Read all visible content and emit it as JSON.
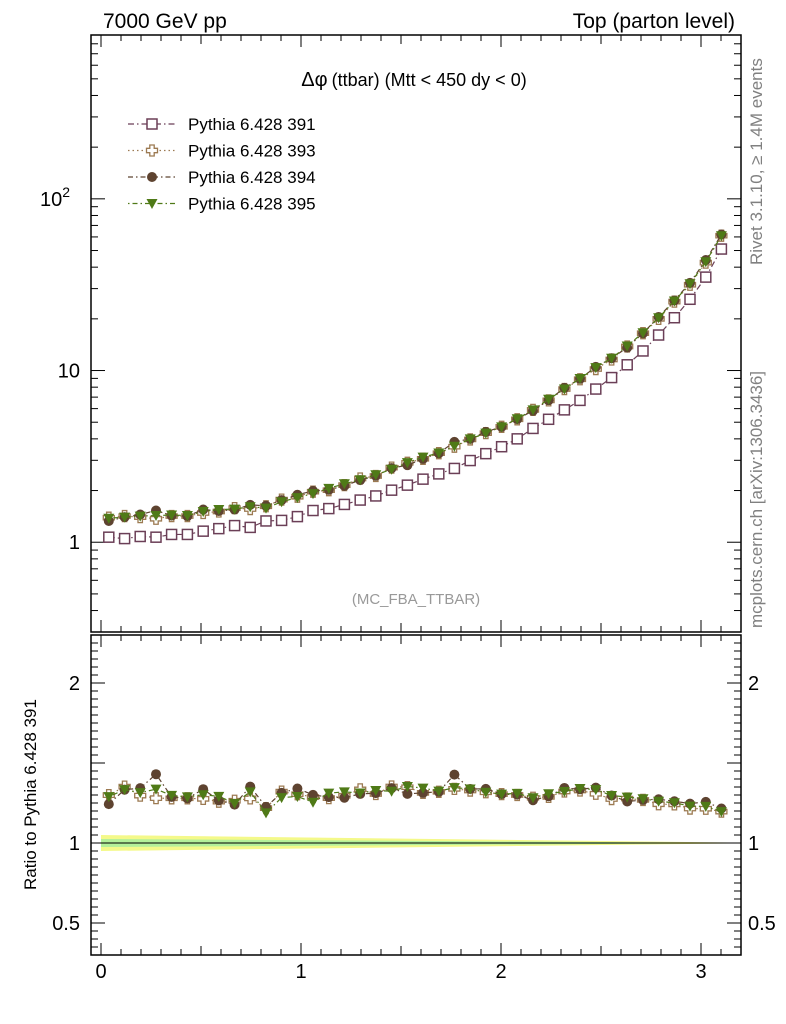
{
  "header": {
    "left": "7000 GeV pp",
    "right": "Top (parton level)"
  },
  "plot_title": "(ttbar) (Mtt < 450 dy < 0)",
  "plot_title_symbol": "Δφ",
  "analysis_tag": "(MC_FBA_TTBAR)",
  "side_text": {
    "rivet": "Rivet 3.1.10, ≥ 1.4M events",
    "mcplots": "mcplots.cern.ch [arXiv:1306.3436]"
  },
  "colors": {
    "s391": "#6b3f57",
    "s393": "#9c7a52",
    "s394": "#5e4330",
    "s395": "#4f7a17",
    "band_outer": "#f4f98a",
    "band_inner": "#b3f09a"
  },
  "chart_data": {
    "type": "scatter",
    "title": "Δφ (ttbar) (Mtt < 450 dy < 0)",
    "main_panel": {
      "yscale": "log",
      "ylim": [
        0.3,
        900
      ],
      "xlim": [
        -0.05,
        3.2
      ],
      "ytick_labels": [
        {
          "value": 1,
          "label": "1"
        },
        {
          "value": 10,
          "label": "10"
        },
        {
          "value": 100,
          "label": "10",
          "sup": "2"
        }
      ]
    },
    "ratio_panel": {
      "ylabel": "Ratio to Pythia 6.428 391",
      "ylim": [
        0.3,
        2.3
      ],
      "ytick_labels": [
        {
          "value": 0.5,
          "label": "0.5"
        },
        {
          "value": 1,
          "label": "1"
        },
        {
          "value": 2,
          "label": "2"
        }
      ]
    },
    "x_tick_labels": [
      {
        "value": 0,
        "label": "0"
      },
      {
        "value": 1,
        "label": "1"
      },
      {
        "value": 2,
        "label": "2"
      },
      {
        "value": 3,
        "label": "3"
      }
    ],
    "x": [
      0.039,
      0.118,
      0.196,
      0.275,
      0.353,
      0.432,
      0.511,
      0.589,
      0.668,
      0.746,
      0.825,
      0.903,
      0.982,
      1.06,
      1.139,
      1.217,
      1.296,
      1.374,
      1.453,
      1.532,
      1.61,
      1.689,
      1.767,
      1.846,
      1.924,
      2.003,
      2.081,
      2.16,
      2.238,
      2.317,
      2.395,
      2.474,
      2.553,
      2.631,
      2.71,
      2.788,
      2.867,
      2.945,
      3.024,
      3.102
    ],
    "series": [
      {
        "name": "Pythia 6.428 391",
        "marker": "open-square",
        "values": [
          1.07,
          1.05,
          1.08,
          1.07,
          1.11,
          1.11,
          1.16,
          1.2,
          1.25,
          1.22,
          1.33,
          1.34,
          1.41,
          1.53,
          1.57,
          1.66,
          1.76,
          1.86,
          2.01,
          2.15,
          2.33,
          2.5,
          2.69,
          2.99,
          3.28,
          3.6,
          4.0,
          4.6,
          5.2,
          5.9,
          6.7,
          7.8,
          9.1,
          10.8,
          13.0,
          16.1,
          20.3,
          26.0,
          35.0,
          51.0
        ]
      },
      {
        "name": "Pythia 6.428 393",
        "marker": "open-cross",
        "values": [
          1.39,
          1.42,
          1.4,
          1.37,
          1.42,
          1.42,
          1.48,
          1.51,
          1.58,
          1.56,
          1.62,
          1.77,
          1.84,
          1.97,
          2.01,
          2.15,
          2.35,
          2.43,
          2.72,
          2.9,
          3.06,
          3.3,
          3.6,
          3.97,
          4.32,
          4.7,
          5.2,
          5.9,
          6.7,
          7.8,
          8.9,
          10.2,
          11.6,
          13.8,
          16.5,
          20.0,
          25.2,
          31.6,
          42.5,
          61.0
        ]
      },
      {
        "name": "Pythia 6.428 394",
        "marker": "filled-circle",
        "values": [
          1.33,
          1.4,
          1.45,
          1.53,
          1.43,
          1.42,
          1.55,
          1.52,
          1.55,
          1.65,
          1.63,
          1.76,
          1.89,
          1.99,
          2.02,
          2.13,
          2.3,
          2.44,
          2.7,
          2.81,
          3.06,
          3.3,
          3.84,
          4.0,
          4.39,
          4.7,
          5.21,
          5.83,
          6.72,
          7.93,
          8.95,
          10.5,
          11.8,
          13.6,
          16.5,
          20.5,
          25.6,
          32.4,
          44.0,
          62.0
        ]
      },
      {
        "name": "Pythia 6.428 395",
        "marker": "filled-triangle-down",
        "values": [
          1.38,
          1.4,
          1.42,
          1.43,
          1.44,
          1.43,
          1.51,
          1.55,
          1.56,
          1.61,
          1.58,
          1.72,
          1.82,
          1.92,
          2.06,
          2.19,
          2.31,
          2.47,
          2.66,
          2.91,
          3.13,
          3.31,
          3.62,
          4.0,
          4.32,
          4.7,
          5.24,
          5.9,
          6.8,
          7.8,
          8.98,
          10.4,
          11.8,
          13.9,
          16.6,
          20.3,
          25.4,
          32.0,
          43.0,
          61.0
        ]
      }
    ]
  }
}
